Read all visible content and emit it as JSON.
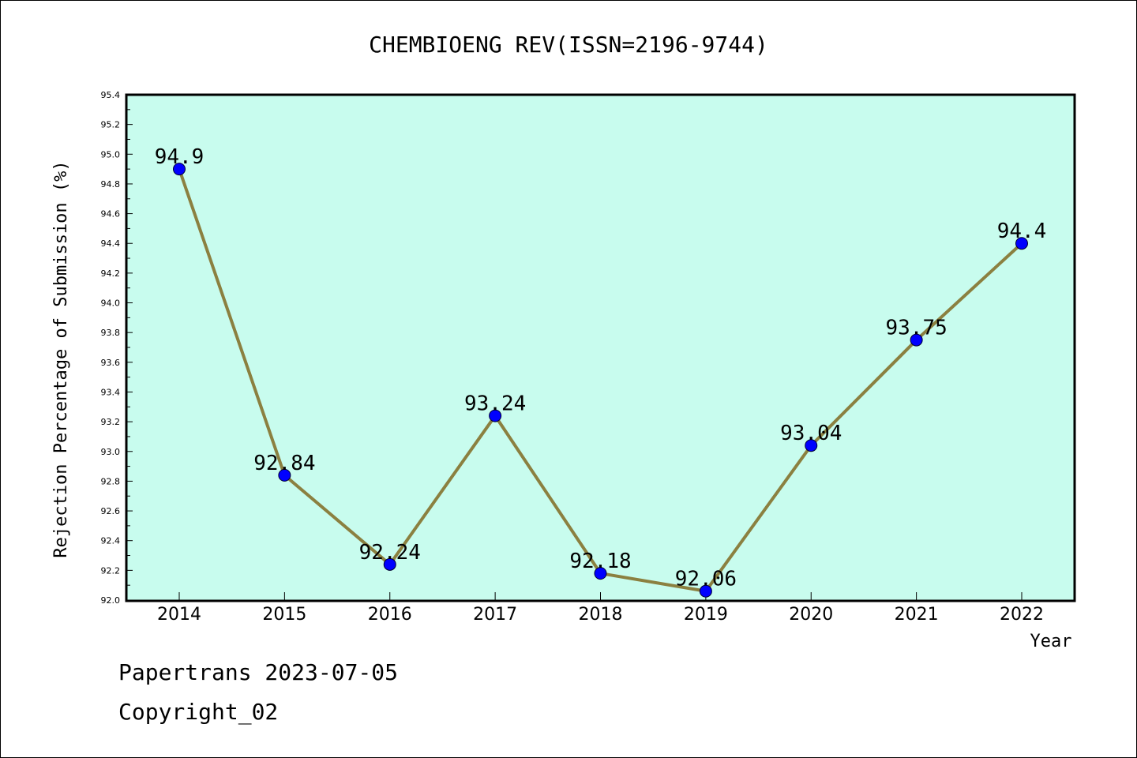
{
  "chart_data": {
    "type": "line",
    "title": "CHEMBIOENG REV(ISSN=2196-9744)",
    "xlabel": "Year",
    "ylabel": "Rejection Percentage of Submission (%)",
    "categories": [
      "2014",
      "2015",
      "2016",
      "2017",
      "2018",
      "2019",
      "2020",
      "2021",
      "2022"
    ],
    "series": [
      {
        "values": [
          94.9,
          92.84,
          92.24,
          93.24,
          92.18,
          92.06,
          93.04,
          93.75,
          94.4
        ],
        "labels": [
          "94.9",
          "92.84",
          "92.24",
          "93.24",
          "92.18",
          "92.06",
          "93.04",
          "93.75",
          "94.4"
        ]
      }
    ],
    "ylim": [
      92.0,
      95.4
    ],
    "yticks": [
      "92.0",
      "92.2",
      "92.4",
      "92.6",
      "92.8",
      "93.0",
      "93.2",
      "93.4",
      "93.6",
      "93.8",
      "94.0",
      "94.2",
      "94.4",
      "94.6",
      "94.8",
      "95.0",
      "95.2",
      "95.4"
    ],
    "grid": false,
    "colors": {
      "plot_background": "#c8fcee",
      "line": "#8b8040",
      "marker": "#0000ff"
    }
  },
  "footer": {
    "line1": "Papertrans 2023-07-05",
    "line2": "Copyright_02"
  }
}
